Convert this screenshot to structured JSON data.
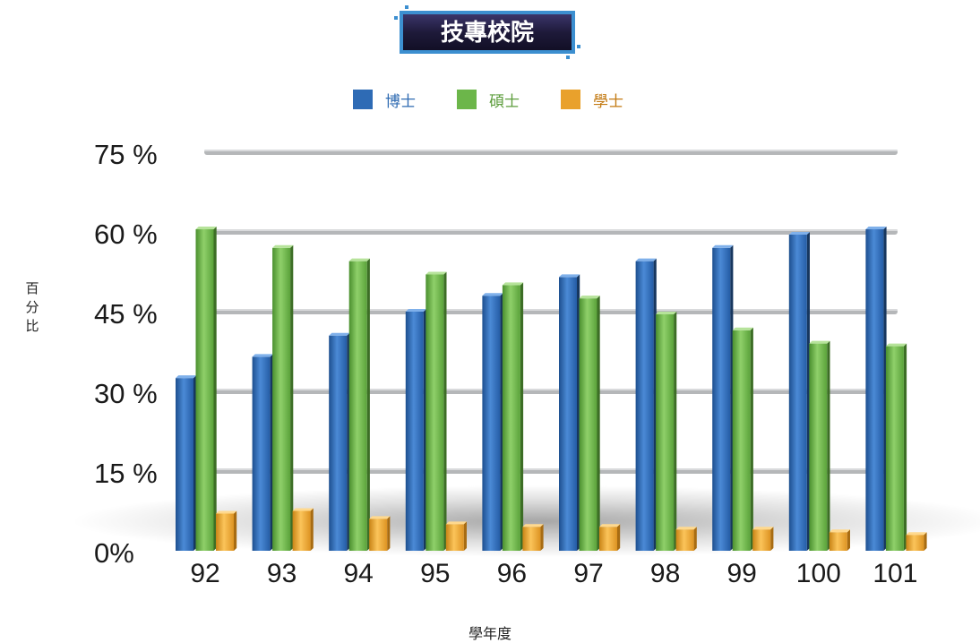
{
  "header": {
    "title": "技專校院"
  },
  "colors": {
    "phd": "#2e6bb5",
    "master": "#6cb64a",
    "bachelor": "#e9a12c",
    "banner_bg": "#1e1a3a",
    "banner_text": "#ffffff",
    "grid": "#b7b9bb"
  },
  "legend": [
    {
      "label": "博士",
      "color": "#2e6bb5",
      "text_color": "#2f6bb2"
    },
    {
      "label": "碩士",
      "color": "#6cb64a",
      "text_color": "#5e9e3e"
    },
    {
      "label": "學士",
      "color": "#e9a12c",
      "text_color": "#c37a12"
    }
  ],
  "axes": {
    "ylabel": "百分比",
    "xlabel": "學年度"
  },
  "chart_data": {
    "type": "bar",
    "categories": [
      "92",
      "93",
      "94",
      "95",
      "96",
      "97",
      "98",
      "99",
      "100",
      "101"
    ],
    "series": [
      {
        "name": "博士",
        "values": [
          32.5,
          36.5,
          40.5,
          45,
          48,
          51.5,
          54.5,
          57,
          59.5,
          60.5
        ]
      },
      {
        "name": "碩士",
        "values": [
          60.5,
          57,
          54.5,
          52,
          50,
          47.5,
          44.5,
          41.5,
          39,
          38.5
        ]
      },
      {
        "name": "學士",
        "values": [
          7,
          7.5,
          6,
          5,
          4.5,
          4.5,
          4,
          4,
          3.5,
          3
        ]
      }
    ],
    "yticks": [
      "0%",
      "15 %",
      "30 %",
      "45 %",
      "60 %",
      "75 %"
    ],
    "ytick_values": [
      0,
      15,
      30,
      45,
      60,
      75
    ],
    "ylim": [
      0,
      75
    ],
    "legend_position": "top-center",
    "grid": true
  }
}
